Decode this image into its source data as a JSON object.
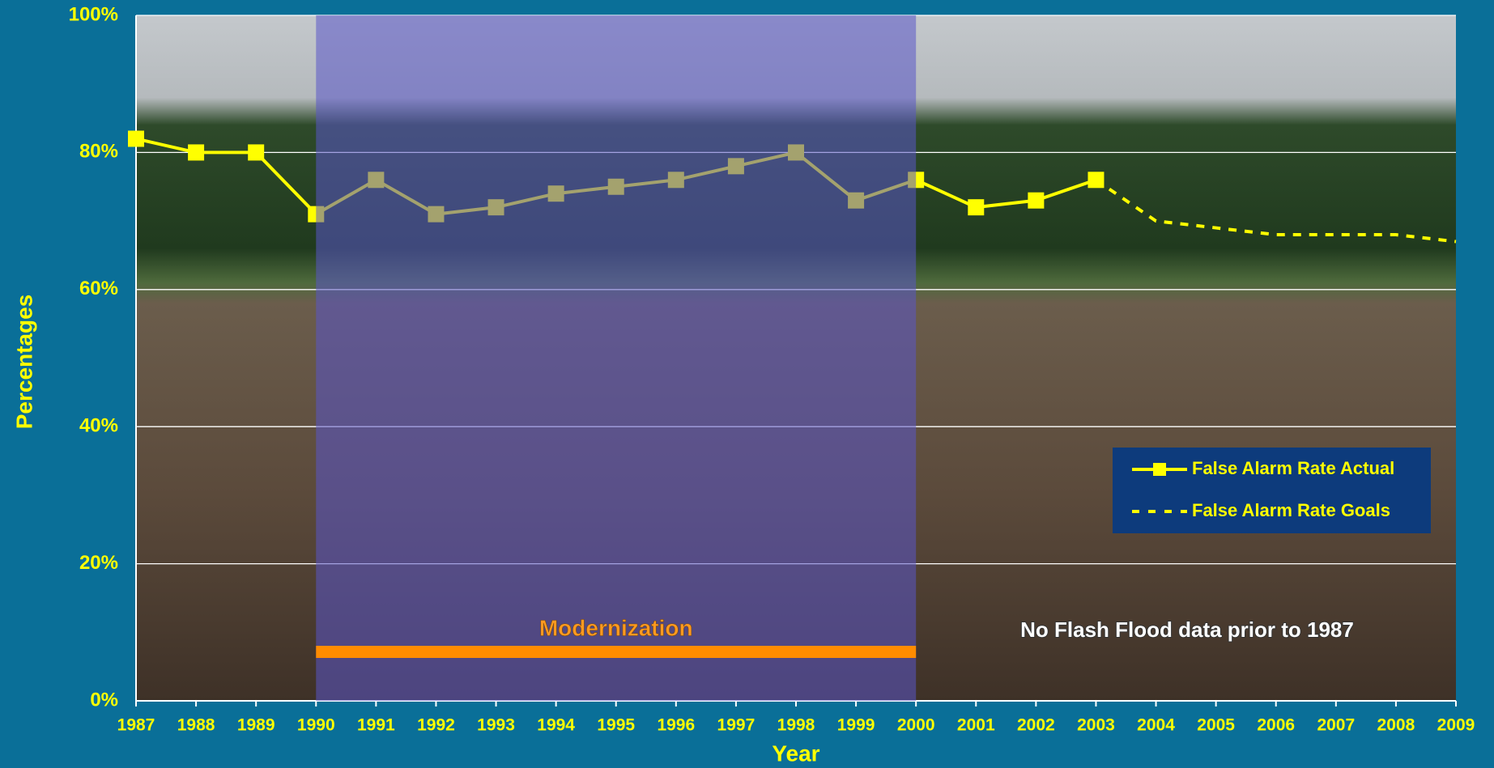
{
  "chart_data": {
    "type": "line",
    "y_label": "Percentages",
    "x_label": "Year",
    "x": [
      1987,
      1988,
      1989,
      1990,
      1991,
      1992,
      1993,
      1994,
      1995,
      1996,
      1997,
      1998,
      1999,
      2000,
      2001,
      2002,
      2003,
      2004,
      2005,
      2006,
      2007,
      2008,
      2009
    ],
    "xlim": [
      1987,
      2009
    ],
    "xticks": [
      1987,
      1988,
      1989,
      1990,
      1991,
      1992,
      1993,
      1994,
      1995,
      1996,
      1997,
      1998,
      1999,
      2000,
      2001,
      2002,
      2003,
      2004,
      2005,
      2006,
      2007,
      2008,
      2009
    ],
    "ylim": [
      0,
      100
    ],
    "yticks": [
      {
        "value": 0,
        "label": "0%"
      },
      {
        "value": 20,
        "label": "20%"
      },
      {
        "value": 40,
        "label": "40%"
      },
      {
        "value": 60,
        "label": "60%"
      },
      {
        "value": 80,
        "label": "80%"
      },
      {
        "value": 100,
        "label": "100%"
      }
    ],
    "grid": true,
    "series": [
      {
        "name": "False Alarm Rate Actual",
        "color": "#ffff00",
        "style": "solid",
        "values": [
          82,
          80,
          80,
          71,
          76,
          71,
          72,
          74,
          75,
          76,
          78,
          80,
          73,
          76,
          72,
          73,
          76,
          null,
          null,
          null,
          null,
          null,
          null
        ]
      },
      {
        "name": "False Alarm Rate Goals",
        "color": "#ffff00",
        "style": "dashed",
        "values": [
          null,
          null,
          null,
          null,
          null,
          null,
          null,
          null,
          null,
          null,
          null,
          null,
          null,
          null,
          null,
          null,
          76,
          70,
          69,
          68,
          68,
          68,
          67
        ]
      }
    ],
    "shaded_span": {
      "label": "Modernization",
      "from": 1990,
      "to": 2000
    },
    "annotation": "No Flash Flood data prior to 1987"
  }
}
